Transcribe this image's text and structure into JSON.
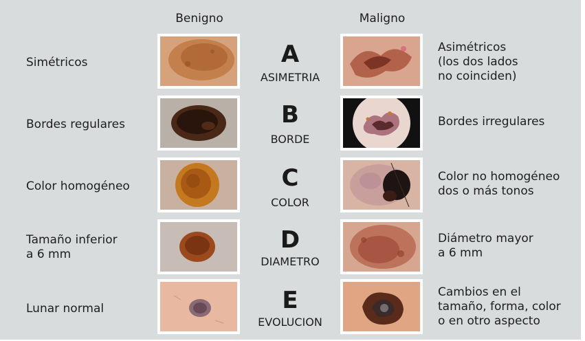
{
  "headers": {
    "benign": "Benigno",
    "malignant": "Maligno"
  },
  "rows": [
    {
      "letter": "A",
      "criterion": "ASIMETRIA",
      "benign_text": "Simétricos",
      "malignant_text": "Asimétricos\n(los dos lados\nno coinciden)"
    },
    {
      "letter": "B",
      "criterion": "BORDE",
      "benign_text": "Bordes regulares",
      "malignant_text": "Bordes irregulares"
    },
    {
      "letter": "C",
      "criterion": "COLOR",
      "benign_text": "Color homogéneo",
      "malignant_text": "Color no homogéneo\ndos o más tonos"
    },
    {
      "letter": "D",
      "criterion": "DIAMETRO",
      "benign_text": "Tamaño inferior\na 6 mm",
      "malignant_text": "Diámetro mayor\na 6 mm"
    },
    {
      "letter": "E",
      "criterion": "EVOLUCION",
      "benign_text": "Lunar normal",
      "malignant_text": "Cambios en el\ntamaño, forma, color\no en otro aspecto"
    }
  ],
  "colors": {
    "panel_bg": "#d9dcdd",
    "skin_light": "#e8c4a8",
    "mole_brown": "#8a4a1c",
    "mole_dark": "#2b1a12"
  }
}
